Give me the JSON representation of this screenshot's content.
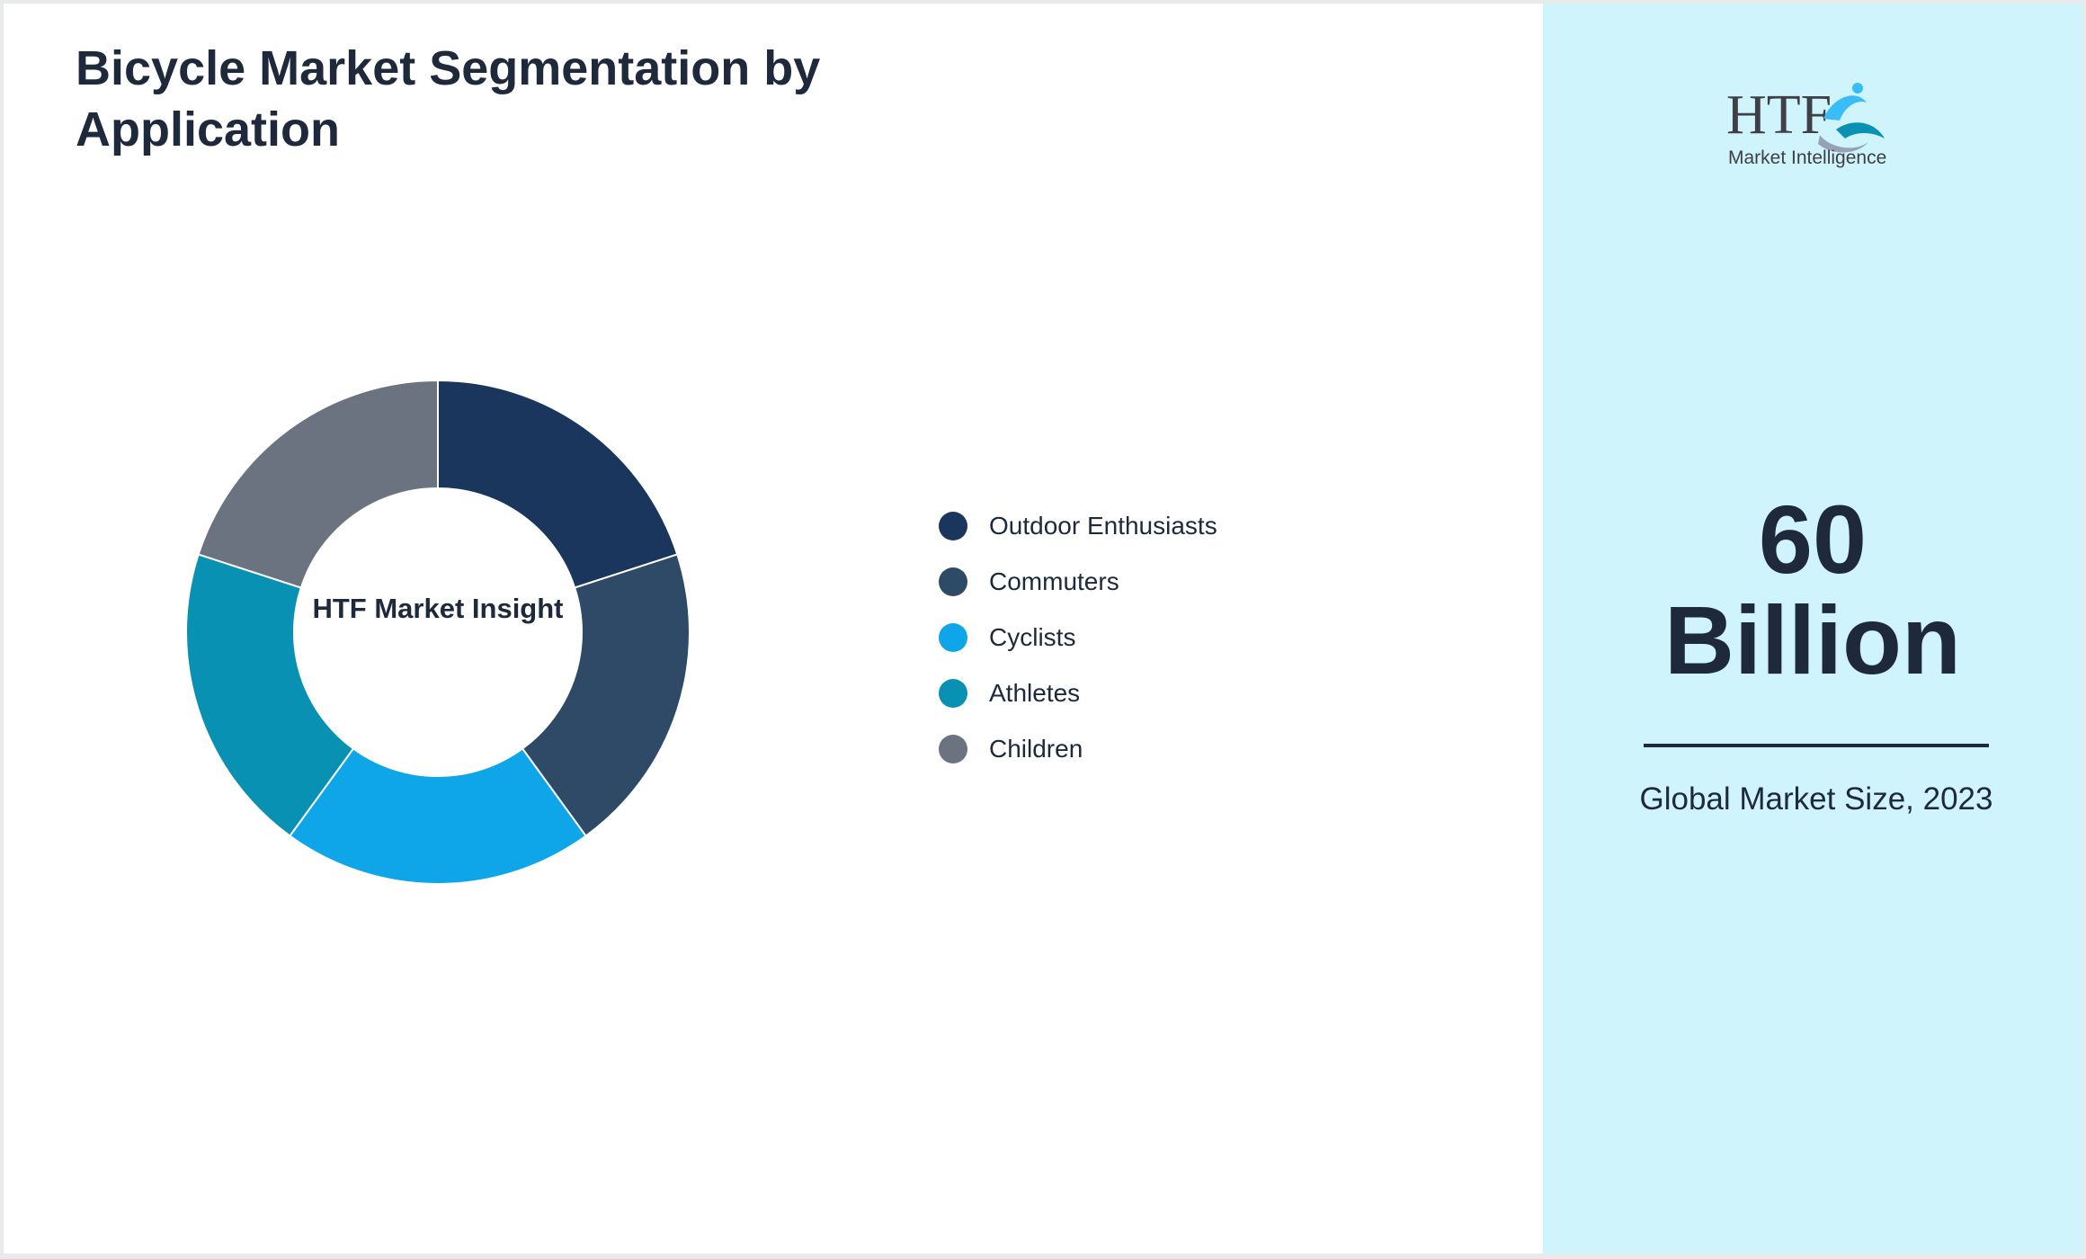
{
  "header": {
    "title": "Bicycle Market Segmentation by Application"
  },
  "chart_data": {
    "type": "pie",
    "variant": "donut",
    "title": "Bicycle Market Segmentation by Application",
    "center_label": "HTF Market Insight",
    "categories": [
      "Outdoor Enthusiasts",
      "Commuters",
      "Cyclists",
      "Athletes",
      "Children"
    ],
    "values": [
      20,
      20,
      20,
      20,
      20
    ],
    "colors": [
      "#1b365d",
      "#2e4a66",
      "#0ea5e9",
      "#0891b2",
      "#6b7280"
    ],
    "legend_position": "right"
  },
  "sidebar": {
    "logo": {
      "brand": "HTF",
      "tagline": "Market Intelligence"
    },
    "stat_value_line1": "60",
    "stat_value_line2": "Billion",
    "stat_caption": "Global Market Size, 2023"
  },
  "colors": {
    "sidebar_background": "#cff4fc",
    "text": "#1e293b"
  }
}
